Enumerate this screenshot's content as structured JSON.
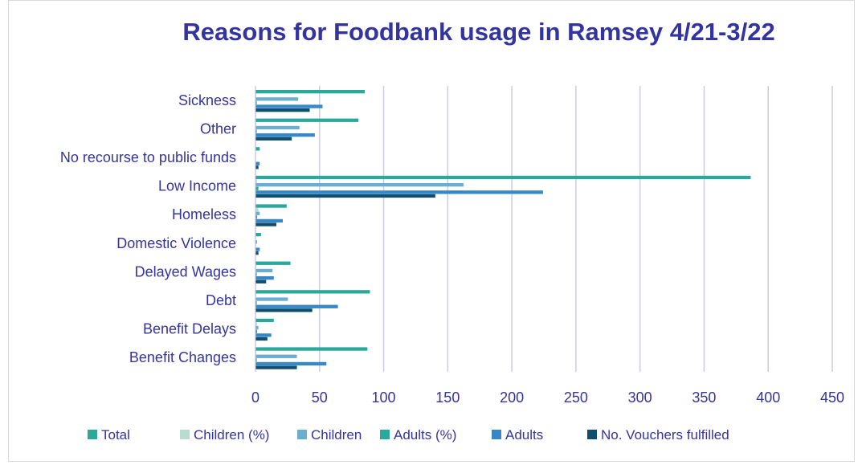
{
  "chart_data": {
    "type": "bar",
    "orientation": "horizontal",
    "title": "Reasons for Foodbank usage in Ramsey 4/21-3/22",
    "xlabel": "",
    "ylabel": "",
    "xlim": [
      0,
      450
    ],
    "xticks": [
      "0",
      "50",
      "100",
      "150",
      "200",
      "250",
      "300",
      "350",
      "400",
      "450"
    ],
    "grid": true,
    "legend_position": "bottom",
    "categories": [
      "Sickness",
      "Other",
      "No recourse to public funds",
      "Low Income",
      "Homeless",
      "Domestic Violence",
      "Delayed Wages",
      "Debt",
      "Benefit Delays",
      "Benefit Changes"
    ],
    "series": [
      {
        "name": "Total",
        "color": "#2aa89a",
        "values": [
          85,
          80,
          3,
          386,
          24,
          4,
          27,
          89,
          14,
          87
        ]
      },
      {
        "name": "Children (%)",
        "color": "#b8dccf",
        "values": [
          0.3,
          0.3,
          0,
          1,
          2,
          0,
          0.3,
          0.3,
          1,
          0.3
        ]
      },
      {
        "name": "Children",
        "color": "#6aafd0",
        "values": [
          33,
          34,
          0,
          162,
          3,
          1,
          13,
          25,
          2,
          32
        ]
      },
      {
        "name": "Adults (%)",
        "color": "#2aa89a",
        "values": [
          0.7,
          0.7,
          0,
          2,
          1,
          0,
          0.7,
          0.7,
          1,
          0.7
        ]
      },
      {
        "name": "Adults",
        "color": "#3688c8",
        "values": [
          52,
          46,
          3,
          224,
          21,
          3,
          14,
          64,
          12,
          55
        ]
      },
      {
        "name": "No. Vouchers fulfilled",
        "color": "#0f4e6e",
        "values": [
          42,
          28,
          2,
          140,
          16,
          2,
          8,
          44,
          9,
          32
        ]
      }
    ]
  }
}
